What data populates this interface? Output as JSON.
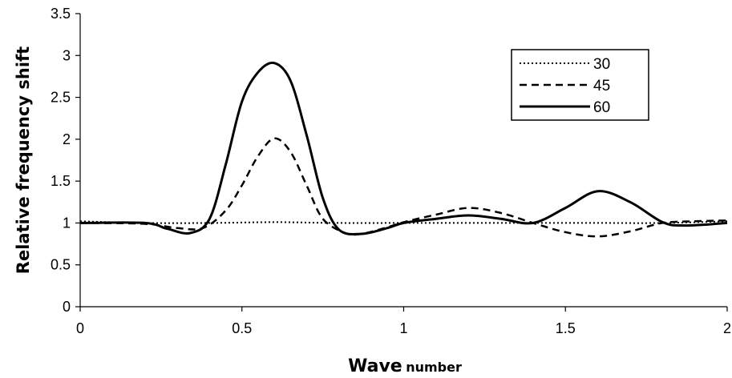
{
  "chart_data": {
    "type": "line",
    "title": "",
    "ylabel": "Relative frequency shift",
    "xlabel_main": "Wave",
    "xlabel_sub": "number",
    "xlim": [
      0,
      2
    ],
    "ylim": [
      0,
      3.5
    ],
    "x_ticks": [
      "0",
      "0.5",
      "1",
      "1.5",
      "2"
    ],
    "y_ticks": [
      "0",
      "0.5",
      "1",
      "1.5",
      "2",
      "2.5",
      "3",
      "3.5"
    ],
    "grid": false,
    "legend_position": "top-right",
    "series": [
      {
        "name": "30",
        "style": "dotted",
        "color": "#000000",
        "x": [
          0,
          0.2,
          0.4,
          0.6,
          0.8,
          1.0,
          1.2,
          1.4,
          1.6,
          1.8,
          2.0
        ],
        "y": [
          1.02,
          1.0,
          1.0,
          1.01,
          1.0,
          1.0,
          1.0,
          1.0,
          1.0,
          1.0,
          1.02
        ]
      },
      {
        "name": "45",
        "style": "dashed",
        "color": "#000000",
        "x": [
          0,
          0.2,
          0.3,
          0.38,
          0.45,
          0.5,
          0.55,
          0.6,
          0.65,
          0.7,
          0.75,
          0.82,
          0.87,
          0.95,
          1.0,
          1.1,
          1.2,
          1.3,
          1.4,
          1.5,
          1.6,
          1.7,
          1.8,
          1.9,
          2.0
        ],
        "y": [
          1.0,
          0.99,
          0.94,
          0.94,
          1.15,
          1.45,
          1.8,
          2.01,
          1.85,
          1.45,
          1.05,
          0.88,
          0.87,
          0.95,
          1.01,
          1.1,
          1.18,
          1.12,
          1.0,
          0.89,
          0.84,
          0.9,
          1.0,
          1.02,
          1.03
        ]
      },
      {
        "name": "60",
        "style": "solid",
        "color": "#000000",
        "x": [
          0,
          0.2,
          0.27,
          0.34,
          0.4,
          0.45,
          0.5,
          0.55,
          0.6,
          0.65,
          0.7,
          0.75,
          0.8,
          0.87,
          0.95,
          1.0,
          1.1,
          1.2,
          1.3,
          1.4,
          1.5,
          1.6,
          1.7,
          1.8,
          1.87,
          2.0
        ],
        "y": [
          1.0,
          1.0,
          0.93,
          0.88,
          1.05,
          1.7,
          2.45,
          2.8,
          2.91,
          2.7,
          2.05,
          1.3,
          0.92,
          0.87,
          0.94,
          1.0,
          1.05,
          1.09,
          1.05,
          1.0,
          1.18,
          1.38,
          1.25,
          1.01,
          0.97,
          1.0
        ]
      }
    ]
  }
}
